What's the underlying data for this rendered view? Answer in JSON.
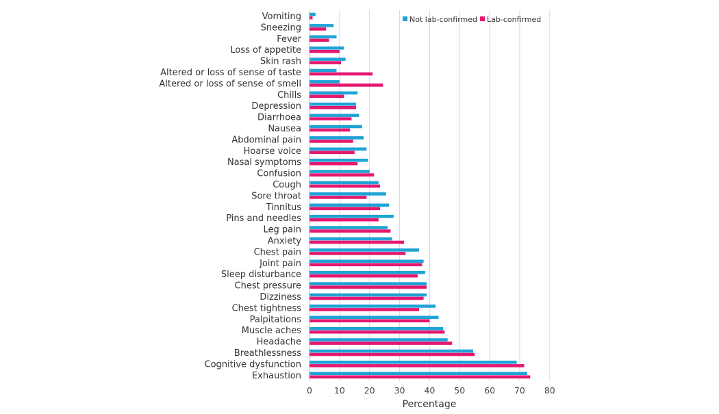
{
  "chart_data": {
    "type": "bar",
    "orientation": "horizontal",
    "title": "",
    "xlabel": "Percentage",
    "ylabel": "",
    "xlim": [
      0,
      80
    ],
    "xticks": [
      0,
      10,
      20,
      30,
      40,
      50,
      60,
      70,
      80
    ],
    "grid": true,
    "legend_position": "top-right",
    "categories": [
      "Vomiting",
      "Sneezing",
      "Fever",
      "Loss of appetite",
      "Skin rash",
      "Altered or loss of sense of taste",
      "Altered or loss of sense of smell",
      "Chills",
      "Depression",
      "Diarrhoea",
      "Nausea",
      "Abdominal pain",
      "Hoarse voice",
      "Nasal symptoms",
      "Confusion",
      "Cough",
      "Sore throat",
      "Tinnitus",
      "Pins and needles",
      "Leg pain",
      "Anxiety",
      "Chest pain",
      "Joint pain",
      "Sleep disturbance",
      "Chest pressure",
      "Dizziness",
      "Chest tightness",
      "Palpitations",
      "Muscle aches",
      "Headache",
      "Breathlessness",
      "Cognitive dysfunction",
      "Exhaustion"
    ],
    "series": [
      {
        "name": "Not lab-confirmed",
        "color": "#1fa2d6",
        "values": [
          2,
          8,
          9,
          11.5,
          12,
          9,
          10,
          16,
          15.5,
          16.5,
          17.5,
          18,
          19,
          19.5,
          20,
          23,
          25.5,
          26.5,
          28,
          26,
          27.5,
          36.5,
          38,
          38.5,
          39,
          39,
          42,
          43,
          44.5,
          46,
          54.5,
          69,
          72.5
        ]
      },
      {
        "name": "Lab-confirmed",
        "color": "#e5176f",
        "values": [
          1,
          5.5,
          6.5,
          10,
          10.5,
          21,
          24.5,
          11.5,
          15.5,
          14,
          13.5,
          14.5,
          15,
          16,
          21.5,
          23.5,
          19,
          23.5,
          23,
          27,
          31.5,
          32,
          37.5,
          36,
          39,
          38,
          36.5,
          40,
          45,
          47.5,
          55,
          71.5,
          73.5
        ]
      }
    ]
  }
}
